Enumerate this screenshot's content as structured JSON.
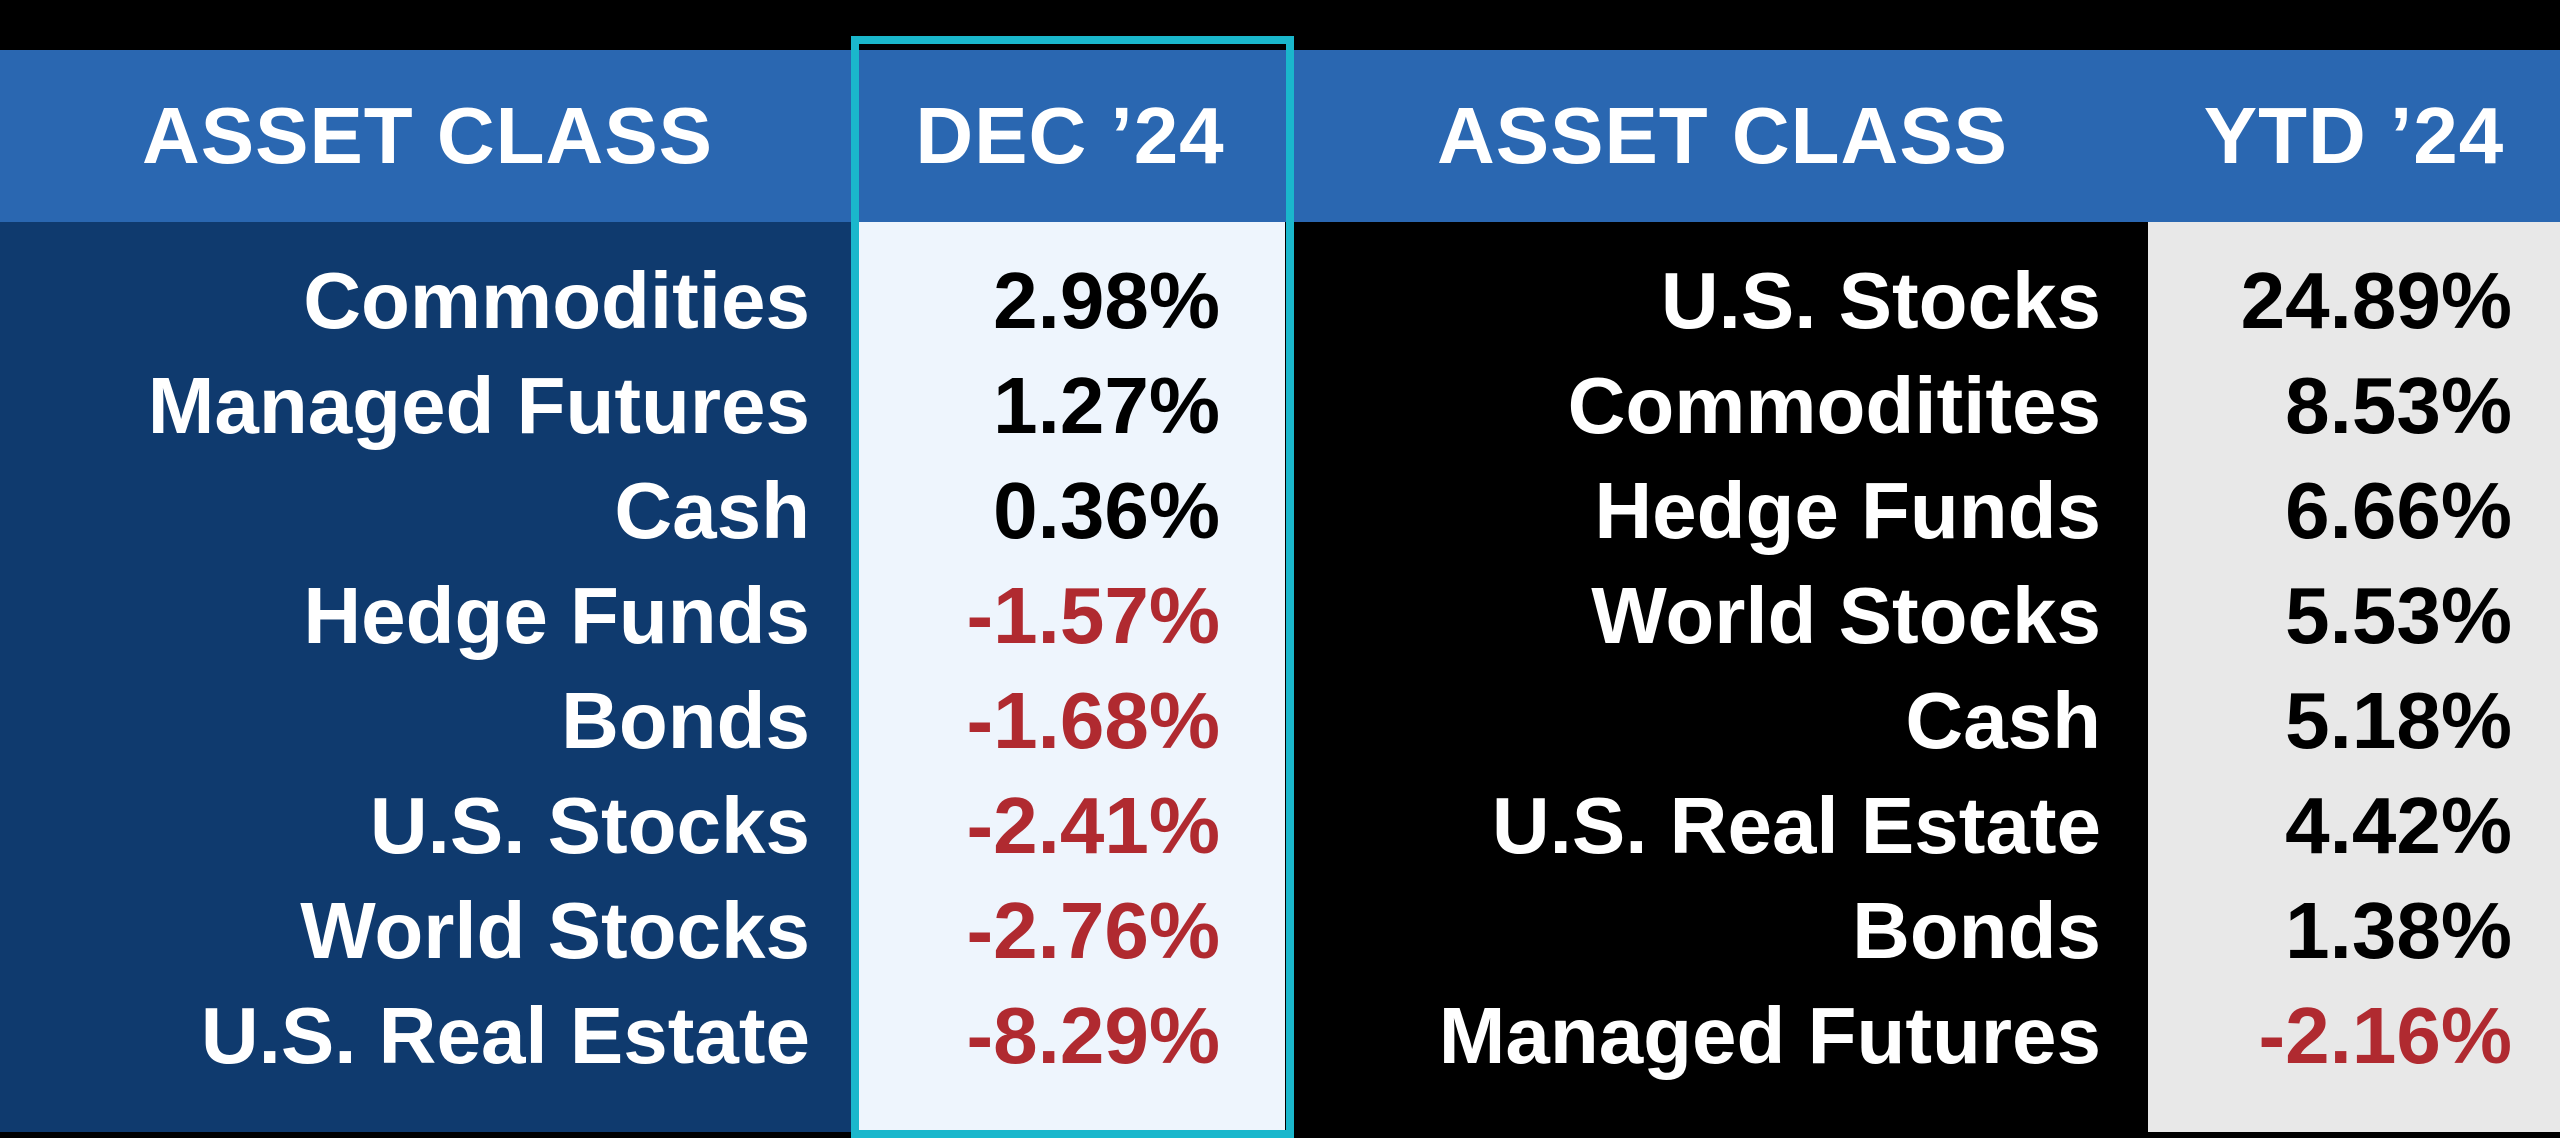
{
  "colors": {
    "header_blue": "#2a67b1",
    "dark_blue_panel": "#0f3a6e",
    "highlight_border": "#1ab7cc",
    "negative_red": "#b02a30",
    "light_panel": "#eef5fd",
    "grey_panel": "#e8e8e8"
  },
  "headers": {
    "left_label": "ASSET CLASS",
    "left_value": "DEC ’24",
    "right_label": "ASSET CLASS",
    "right_value": "YTD ’24"
  },
  "chart_data": {
    "type": "table",
    "tables": [
      {
        "columns": [
          "ASSET CLASS",
          "DEC ’24"
        ],
        "rows": [
          {
            "asset": "Commodities",
            "value": "2.98%",
            "num": 2.98
          },
          {
            "asset": "Managed Futures",
            "value": "1.27%",
            "num": 1.27
          },
          {
            "asset": "Cash",
            "value": "0.36%",
            "num": 0.36
          },
          {
            "asset": "Hedge Funds",
            "value": "-1.57%",
            "num": -1.57
          },
          {
            "asset": "Bonds",
            "value": "-1.68%",
            "num": -1.68
          },
          {
            "asset": "U.S. Stocks",
            "value": "-2.41%",
            "num": -2.41
          },
          {
            "asset": "World Stocks",
            "value": "-2.76%",
            "num": -2.76
          },
          {
            "asset": "U.S. Real Estate",
            "value": "-8.29%",
            "num": -8.29
          }
        ]
      },
      {
        "columns": [
          "ASSET CLASS",
          "YTD ’24"
        ],
        "rows": [
          {
            "asset": "U.S. Stocks",
            "value": "24.89%",
            "num": 24.89
          },
          {
            "asset": "Commoditites",
            "value": "8.53%",
            "num": 8.53
          },
          {
            "asset": "Hedge Funds",
            "value": "6.66%",
            "num": 6.66
          },
          {
            "asset": "World Stocks",
            "value": "5.53%",
            "num": 5.53
          },
          {
            "asset": "Cash",
            "value": "5.18%",
            "num": 5.18
          },
          {
            "asset": "U.S. Real Estate",
            "value": "4.42%",
            "num": 4.42
          },
          {
            "asset": "Bonds",
            "value": "1.38%",
            "num": 1.38
          },
          {
            "asset": "Managed Futures",
            "value": "-2.16%",
            "num": -2.16
          }
        ]
      }
    ]
  }
}
